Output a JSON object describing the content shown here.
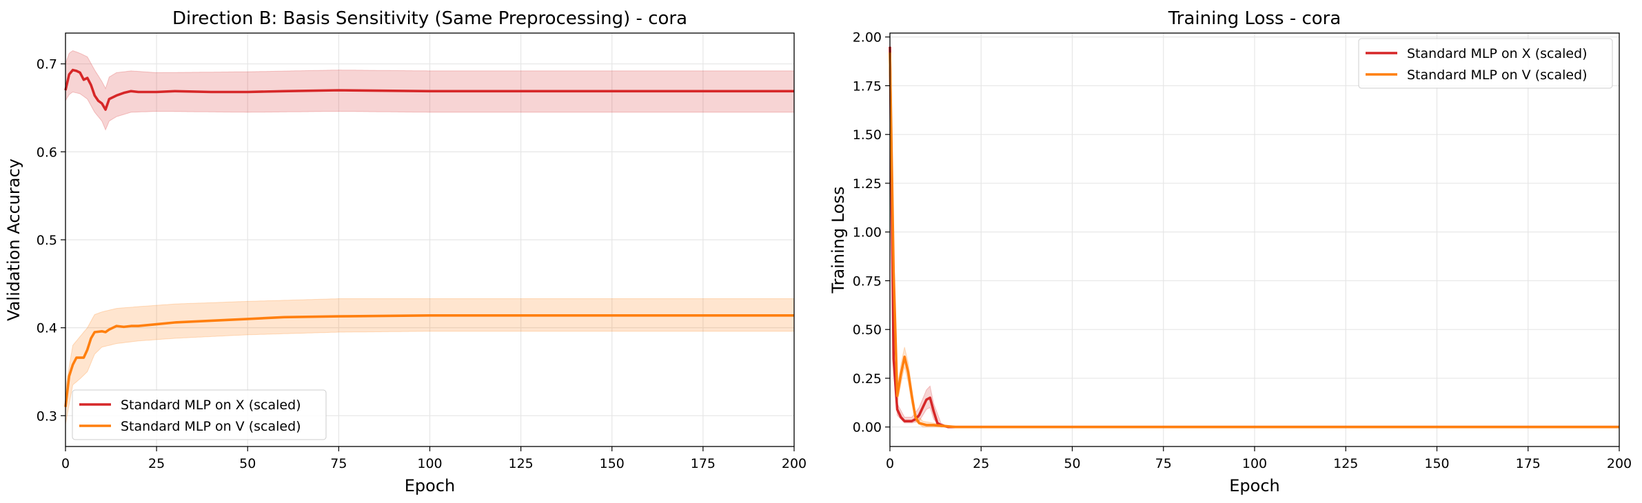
{
  "chart_data": [
    {
      "type": "line",
      "title": "Direction B: Basis Sensitivity (Same Preprocessing) - cora",
      "xlabel": "Epoch",
      "ylabel": "Validation Accuracy",
      "xlim": [
        0,
        200
      ],
      "ylim": [
        0.265,
        0.735
      ],
      "x_ticks": [
        0,
        25,
        50,
        75,
        100,
        125,
        150,
        175,
        200
      ],
      "x_tick_labels": [
        "0",
        "25",
        "50",
        "75",
        "100",
        "125",
        "150",
        "175",
        "200"
      ],
      "y_ticks": [
        0.3,
        0.4,
        0.5,
        0.6,
        0.7
      ],
      "y_tick_labels": [
        "0.3",
        "0.4",
        "0.5",
        "0.6",
        "0.7"
      ],
      "grid": true,
      "legend_position": "lower-left",
      "series": [
        {
          "name": "Standard MLP on X (scaled)",
          "color": "#d62728",
          "points": [
            [
              0,
              0.67
            ],
            [
              1,
              0.688
            ],
            [
              2,
              0.693
            ],
            [
              3,
              0.692
            ],
            [
              4,
              0.69
            ],
            [
              5,
              0.682
            ],
            [
              6,
              0.684
            ],
            [
              7,
              0.676
            ],
            [
              8,
              0.664
            ],
            [
              9,
              0.658
            ],
            [
              10,
              0.655
            ],
            [
              11,
              0.648
            ],
            [
              12,
              0.66
            ],
            [
              14,
              0.664
            ],
            [
              16,
              0.667
            ],
            [
              18,
              0.669
            ],
            [
              20,
              0.668
            ],
            [
              25,
              0.668
            ],
            [
              30,
              0.669
            ],
            [
              40,
              0.668
            ],
            [
              50,
              0.668
            ],
            [
              60,
              0.669
            ],
            [
              75,
              0.67
            ],
            [
              100,
              0.669
            ],
            [
              150,
              0.669
            ],
            [
              200,
              0.669
            ]
          ],
          "band": [
            [
              0,
              0.658,
              0.7
            ],
            [
              1,
              0.665,
              0.712
            ],
            [
              2,
              0.668,
              0.715
            ],
            [
              4,
              0.666,
              0.712
            ],
            [
              6,
              0.66,
              0.708
            ],
            [
              8,
              0.645,
              0.693
            ],
            [
              10,
              0.635,
              0.68
            ],
            [
              11,
              0.625,
              0.672
            ],
            [
              12,
              0.635,
              0.685
            ],
            [
              14,
              0.64,
              0.69
            ],
            [
              18,
              0.645,
              0.692
            ],
            [
              25,
              0.646,
              0.69
            ],
            [
              50,
              0.645,
              0.691
            ],
            [
              75,
              0.646,
              0.693
            ],
            [
              100,
              0.645,
              0.692
            ],
            [
              150,
              0.645,
              0.692
            ],
            [
              200,
              0.645,
              0.692
            ]
          ]
        },
        {
          "name": "Standard MLP on V (scaled)",
          "color": "#ff7f0e",
          "points": [
            [
              0,
              0.31
            ],
            [
              1,
              0.345
            ],
            [
              2,
              0.358
            ],
            [
              3,
              0.366
            ],
            [
              5,
              0.366
            ],
            [
              6,
              0.375
            ],
            [
              7,
              0.388
            ],
            [
              8,
              0.395
            ],
            [
              10,
              0.396
            ],
            [
              11,
              0.395
            ],
            [
              12,
              0.398
            ],
            [
              14,
              0.402
            ],
            [
              16,
              0.401
            ],
            [
              18,
              0.402
            ],
            [
              20,
              0.402
            ],
            [
              25,
              0.404
            ],
            [
              30,
              0.406
            ],
            [
              40,
              0.408
            ],
            [
              50,
              0.41
            ],
            [
              60,
              0.412
            ],
            [
              75,
              0.413
            ],
            [
              100,
              0.414
            ],
            [
              150,
              0.414
            ],
            [
              200,
              0.414
            ]
          ],
          "band": [
            [
              0,
              0.29,
              0.33
            ],
            [
              2,
              0.335,
              0.38
            ],
            [
              4,
              0.342,
              0.39
            ],
            [
              6,
              0.35,
              0.4
            ],
            [
              8,
              0.37,
              0.415
            ],
            [
              10,
              0.378,
              0.418
            ],
            [
              14,
              0.382,
              0.422
            ],
            [
              20,
              0.385,
              0.424
            ],
            [
              30,
              0.388,
              0.427
            ],
            [
              50,
              0.392,
              0.43
            ],
            [
              75,
              0.395,
              0.433
            ],
            [
              100,
              0.396,
              0.433
            ],
            [
              150,
              0.396,
              0.433
            ],
            [
              200,
              0.396,
              0.433
            ]
          ]
        }
      ]
    },
    {
      "type": "line",
      "title": "Training Loss - cora",
      "xlabel": "Epoch",
      "ylabel": "Training Loss",
      "xlim": [
        0,
        200
      ],
      "ylim": [
        -0.1,
        2.02
      ],
      "x_ticks": [
        0,
        25,
        50,
        75,
        100,
        125,
        150,
        175,
        200
      ],
      "x_tick_labels": [
        "0",
        "25",
        "50",
        "75",
        "100",
        "125",
        "150",
        "175",
        "200"
      ],
      "y_ticks": [
        0.0,
        0.25,
        0.5,
        0.75,
        1.0,
        1.25,
        1.5,
        1.75,
        2.0
      ],
      "y_tick_labels": [
        "0.00",
        "0.25",
        "0.50",
        "0.75",
        "1.00",
        "1.25",
        "1.50",
        "1.75",
        "2.00"
      ],
      "grid": true,
      "legend_position": "top-right",
      "series": [
        {
          "name": "Standard MLP on X (scaled)",
          "color": "#d62728",
          "points": [
            [
              0,
              1.95
            ],
            [
              1,
              0.35
            ],
            [
              2,
              0.09
            ],
            [
              3,
              0.05
            ],
            [
              4,
              0.03
            ],
            [
              5,
              0.03
            ],
            [
              6,
              0.03
            ],
            [
              7,
              0.04
            ],
            [
              8,
              0.06
            ],
            [
              9,
              0.1
            ],
            [
              10,
              0.14
            ],
            [
              11,
              0.15
            ],
            [
              12,
              0.08
            ],
            [
              13,
              0.02
            ],
            [
              14,
              0.01
            ],
            [
              16,
              0.0
            ],
            [
              20,
              0.0
            ],
            [
              200,
              0.0
            ]
          ],
          "band": [
            [
              0,
              1.9,
              2.0
            ],
            [
              1,
              0.28,
              0.42
            ],
            [
              2,
              0.06,
              0.12
            ],
            [
              4,
              0.02,
              0.05
            ],
            [
              6,
              0.02,
              0.05
            ],
            [
              8,
              0.03,
              0.1
            ],
            [
              10,
              0.09,
              0.19
            ],
            [
              11,
              0.1,
              0.21
            ],
            [
              12,
              0.04,
              0.12
            ],
            [
              14,
              0.0,
              0.02
            ],
            [
              16,
              0.0,
              0.0
            ],
            [
              200,
              0.0,
              0.0
            ]
          ]
        },
        {
          "name": "Standard MLP on V (scaled)",
          "color": "#ff7f0e",
          "points": [
            [
              0,
              1.92
            ],
            [
              1,
              0.8
            ],
            [
              2,
              0.16
            ],
            [
              3,
              0.27
            ],
            [
              4,
              0.36
            ],
            [
              5,
              0.28
            ],
            [
              6,
              0.16
            ],
            [
              7,
              0.05
            ],
            [
              8,
              0.02
            ],
            [
              10,
              0.01
            ],
            [
              12,
              0.01
            ],
            [
              15,
              0.005
            ],
            [
              18,
              0.0
            ],
            [
              200,
              0.0
            ]
          ],
          "band": [
            [
              0,
              1.88,
              1.96
            ],
            [
              1,
              0.7,
              0.9
            ],
            [
              2,
              0.12,
              0.2
            ],
            [
              3,
              0.22,
              0.32
            ],
            [
              4,
              0.31,
              0.41
            ],
            [
              5,
              0.23,
              0.33
            ],
            [
              6,
              0.12,
              0.2
            ],
            [
              7,
              0.03,
              0.07
            ],
            [
              9,
              0.0,
              0.03
            ],
            [
              12,
              0.0,
              0.02
            ],
            [
              18,
              0.0,
              0.0
            ],
            [
              200,
              0.0,
              0.0
            ]
          ]
        }
      ]
    }
  ]
}
